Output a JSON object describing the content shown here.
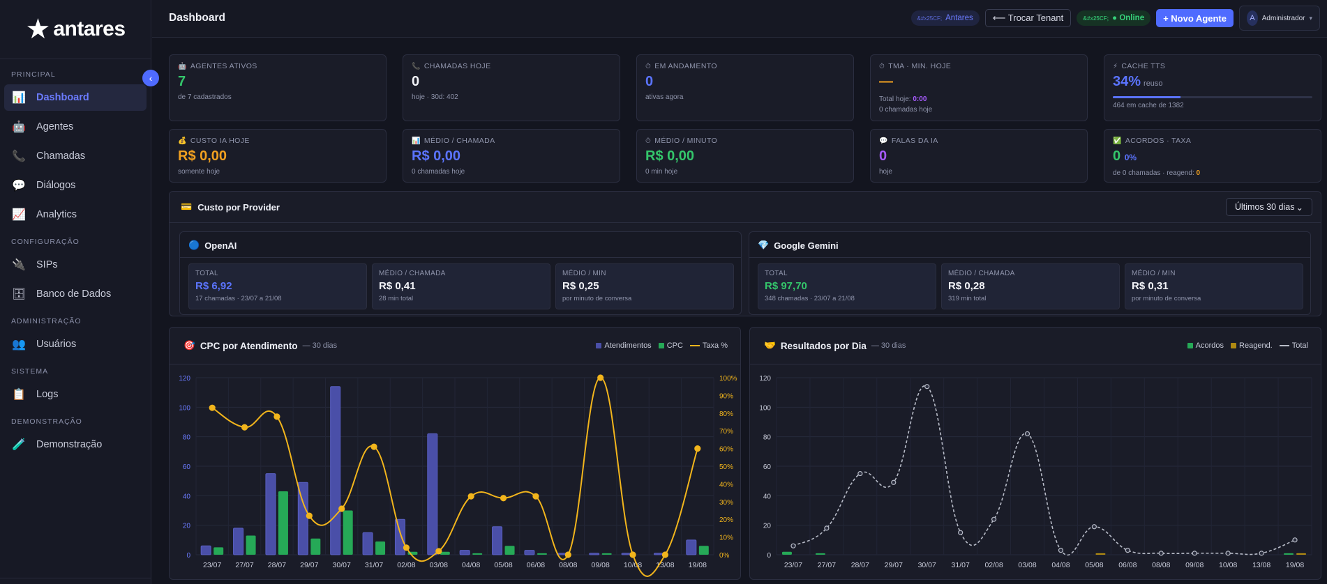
{
  "brand": {
    "name": "antares"
  },
  "sidebar": {
    "collapse_label": "‹",
    "sections": [
      {
        "title": "PRINCIPAL",
        "items": [
          {
            "label": "Dashboard",
            "icon": "bar-chart-icon",
            "glyph": "📊",
            "active": true
          },
          {
            "label": "Agentes",
            "icon": "robot-icon",
            "glyph": "🤖"
          },
          {
            "label": "Chamadas",
            "icon": "phone-icon",
            "glyph": "📞"
          },
          {
            "label": "Diálogos",
            "icon": "speech-bubble-icon",
            "glyph": "💬"
          },
          {
            "label": "Analytics",
            "icon": "line-chart-icon",
            "glyph": "📈"
          }
        ]
      },
      {
        "title": "CONFIGURAÇÃO",
        "items": [
          {
            "label": "SIPs",
            "icon": "plug-icon",
            "glyph": "🔌"
          }
        ]
      },
      {
        "title": "",
        "items": [
          {
            "label": "Banco de Dados",
            "icon": "database-icon",
            "glyph": "🗄"
          }
        ]
      },
      {
        "title": "ADMINISTRAÇÃO",
        "items": [
          {
            "label": "Usuários",
            "icon": "users-icon",
            "glyph": "👥"
          }
        ]
      },
      {
        "title": "SISTEMA",
        "items": [
          {
            "label": "Logs",
            "icon": "clipboard-icon",
            "glyph": "📋"
          }
        ]
      },
      {
        "title": "DEMONSTRAÇÃO",
        "items": [
          {
            "label": "Demonstração",
            "icon": "test-tube-icon",
            "glyph": "🧪"
          }
        ]
      }
    ]
  },
  "header": {
    "title": "Dashboard",
    "tenant_pill": {
      "prefix": "&#x25CF;",
      "label": "Antares"
    },
    "switch_tenant": "⟵ Trocar Tenant",
    "online_pill": {
      "prefix": "&#x25CF;",
      "label": "● Online"
    },
    "new_agent": "+ Novo Agente",
    "user": {
      "initial": "A",
      "name": "Administrador"
    }
  },
  "stats": [
    {
      "label": "AGENTES ATIVOS",
      "value": "7",
      "sub": "de 7 cadastrados",
      "color": "#34c66b",
      "icon": "robot-icon",
      "glyph": "🤖"
    },
    {
      "label": "CHAMADAS HOJE",
      "value": "0",
      "sub": "hoje · 30d: 402",
      "color": "#f2f3f8",
      "icon": "phone-icon",
      "glyph": "📞"
    },
    {
      "label": "EM ANDAMENTO",
      "value": "0",
      "sub": "ativas agora",
      "color": "#5b74ff",
      "icon": "clock-icon",
      "glyph": "⏱"
    },
    {
      "label": "TMA · MIN. HOJE",
      "value": "—",
      "sub_prefix": "Total hoje:",
      "sub_value": "0:00",
      "sub2": "0 chamadas hoje",
      "color": "#f0a020",
      "icon": "timer-icon",
      "glyph": "⏱"
    },
    {
      "label": "CACHE TTS",
      "value": "34%",
      "value_suffix": "reuso",
      "progress": 0.34,
      "sub": "464 em cache de 1382",
      "color": "#5b74ff",
      "icon": "bolt-icon",
      "glyph": "⚡"
    },
    {
      "label": "CUSTO IA HOJE",
      "value": "R$ 0,00",
      "sub": "somente hoje",
      "color": "#f0a020",
      "icon": "money-bag-icon",
      "glyph": "💰"
    },
    {
      "label": "MÉDIO / CHAMADA",
      "value": "R$ 0,00",
      "sub": "0 chamadas hoje",
      "color": "#5b74ff",
      "icon": "bar-chart-icon",
      "glyph": "📊"
    },
    {
      "label": "MÉDIO / MINUTO",
      "value": "R$ 0,00",
      "sub": "0 min hoje",
      "color": "#34c66b",
      "icon": "clock-icon",
      "glyph": "⏱"
    },
    {
      "label": "FALAS DA IA",
      "value": "0",
      "sub": "hoje",
      "color": "#a75bff",
      "icon": "speech-bubble-icon",
      "glyph": "💬"
    },
    {
      "label": "ACORDOS · TAXA",
      "value": "0",
      "value_extra": "0%",
      "sub_prefix": "de 0 chamadas  ·  reagend:",
      "sub_value": "0",
      "color": "#34c66b",
      "icon": "check-icon",
      "glyph": "✅"
    }
  ],
  "providers_section": {
    "title": "Custo por Provider",
    "icon_glyph": "💳",
    "range": "Últimos 30 dias",
    "providers": [
      {
        "name": "OpenAI",
        "glyph": "🔵",
        "boxes": [
          {
            "label": "TOTAL",
            "value": "R$ 6,92",
            "sub": "17 chamadas · 23/07 a 21/08",
            "color": "#5b74ff"
          },
          {
            "label": "MÉDIO / CHAMADA",
            "value": "R$ 0,41",
            "sub": "28 min total",
            "color": "#f2f3f8"
          },
          {
            "label": "MÉDIO / MIN",
            "value": "R$ 0,25",
            "sub": "por minuto de conversa",
            "color": "#f2f3f8"
          }
        ]
      },
      {
        "name": "Google Gemini",
        "glyph": "💎",
        "boxes": [
          {
            "label": "TOTAL",
            "value": "R$ 97,70",
            "sub": "348 chamadas · 23/07 a 21/08",
            "color": "#34c66b"
          },
          {
            "label": "MÉDIO / CHAMADA",
            "value": "R$ 0,28",
            "sub": "319 min total",
            "color": "#f2f3f8"
          },
          {
            "label": "MÉDIO / MIN",
            "value": "R$ 0,31",
            "sub": "por minuto de conversa",
            "color": "#f2f3f8"
          }
        ]
      }
    ]
  },
  "chart_data": [
    {
      "type": "bar",
      "title": "CPC por Atendimento",
      "subtitle": "— 30 dias",
      "categories": [
        "23/07",
        "27/07",
        "28/07",
        "29/07",
        "30/07",
        "31/07",
        "02/08",
        "03/08",
        "04/08",
        "05/08",
        "06/08",
        "08/08",
        "09/08",
        "10/08",
        "13/08",
        "19/08"
      ],
      "series": [
        {
          "name": "Atendimentos",
          "kind": "bar",
          "color": "#4a4fa8",
          "values": [
            6,
            18,
            55,
            49,
            114,
            15,
            24,
            82,
            3,
            19,
            3,
            1,
            1,
            1,
            1,
            10
          ]
        },
        {
          "name": "CPC",
          "kind": "bar",
          "color": "#26a957",
          "values": [
            5,
            13,
            43,
            11,
            30,
            9,
            2,
            2,
            1,
            6,
            1,
            0,
            1,
            0,
            0,
            6
          ]
        },
        {
          "name": "Taxa %",
          "kind": "line",
          "axis": "right",
          "color": "#f2b51c",
          "values": [
            83,
            72,
            78,
            22,
            26,
            61,
            4,
            2,
            33,
            32,
            33,
            0,
            100,
            0,
            0,
            60
          ]
        }
      ],
      "ylim": [
        0,
        120
      ],
      "yticks": [
        0,
        20,
        40,
        60,
        80,
        100,
        120
      ],
      "y2lim": [
        0,
        100
      ],
      "y2ticks": [
        "0%",
        "10%",
        "20%",
        "30%",
        "40%",
        "50%",
        "60%",
        "70%",
        "80%",
        "90%",
        "100%"
      ],
      "legend": "top-right",
      "grid": true
    },
    {
      "type": "bar",
      "title": "Resultados por Dia",
      "subtitle": "— 30 dias",
      "categories": [
        "23/07",
        "27/07",
        "28/07",
        "29/07",
        "30/07",
        "31/07",
        "02/08",
        "03/08",
        "04/08",
        "05/08",
        "06/08",
        "08/08",
        "09/08",
        "10/08",
        "13/08",
        "19/08"
      ],
      "series": [
        {
          "name": "Acordos",
          "kind": "bar",
          "color": "#26a957",
          "values": [
            2,
            1,
            0,
            0,
            0,
            0,
            0,
            0,
            0,
            0,
            0,
            0,
            0,
            0,
            0,
            1
          ]
        },
        {
          "name": "Reagend.",
          "kind": "bar",
          "color": "#b08a12",
          "values": [
            0,
            0,
            0,
            0,
            0,
            0,
            0,
            0,
            0,
            1,
            0,
            0,
            0,
            0,
            0,
            1
          ]
        },
        {
          "name": "Total",
          "kind": "line",
          "color": "#b8bcc8",
          "values": [
            6,
            18,
            55,
            49,
            114,
            15,
            24,
            82,
            3,
            19,
            3,
            1,
            1,
            1,
            1,
            10
          ]
        }
      ],
      "ylim": [
        0,
        120
      ],
      "yticks": [
        0,
        20,
        40,
        60,
        80,
        100,
        120
      ],
      "legend": "top-right",
      "grid": true
    }
  ],
  "chart_icons": [
    {
      "icon": "target-icon",
      "glyph": "🎯"
    },
    {
      "icon": "handshake-icon",
      "glyph": "🤝"
    }
  ]
}
